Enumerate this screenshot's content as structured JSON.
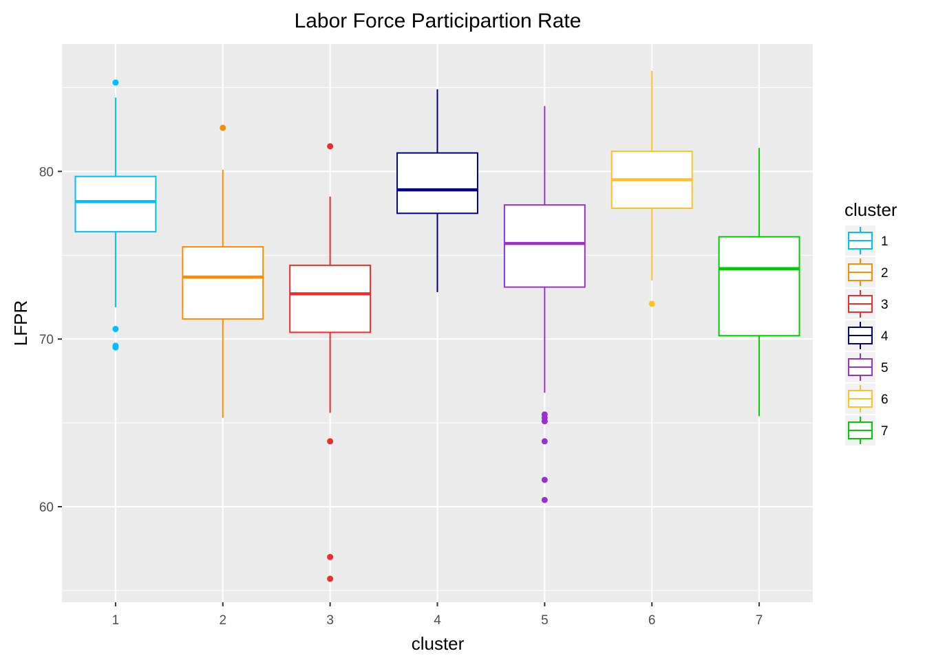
{
  "chart_data": {
    "type": "boxplot",
    "title": "Labor Force Participartion Rate",
    "xlabel": "cluster",
    "ylabel": "LFPR",
    "ylim": [
      54.3,
      87.6
    ],
    "yticks": [
      60,
      70,
      80
    ],
    "grid": true,
    "legend": {
      "title": "cluster",
      "position": "right"
    },
    "categories": [
      "1",
      "2",
      "3",
      "4",
      "5",
      "6",
      "7"
    ],
    "series": [
      {
        "name": "1",
        "color": "#00BFFF",
        "q1": 76.4,
        "median": 78.2,
        "q3": 79.7,
        "whisker_low": 71.9,
        "whisker_high": 84.4,
        "outliers": [
          85.3,
          70.6,
          69.6,
          69.5
        ]
      },
      {
        "name": "2",
        "color": "#FF8C00",
        "q1": 71.2,
        "median": 73.7,
        "q3": 75.5,
        "whisker_low": 65.3,
        "whisker_high": 80.1,
        "outliers": [
          82.6
        ]
      },
      {
        "name": "3",
        "color": "#EE2C2C",
        "q1": 70.4,
        "median": 72.7,
        "q3": 74.4,
        "whisker_low": 65.6,
        "whisker_high": 78.5,
        "outliers": [
          81.5,
          63.9,
          57.0,
          55.7
        ]
      },
      {
        "name": "4",
        "color": "#000080",
        "q1": 77.5,
        "median": 78.9,
        "q3": 81.1,
        "whisker_low": 72.8,
        "whisker_high": 84.9,
        "outliers": []
      },
      {
        "name": "5",
        "color": "#9932CC",
        "q1": 73.1,
        "median": 75.7,
        "q3": 78.0,
        "whisker_low": 66.8,
        "whisker_high": 83.9,
        "outliers": [
          65.5,
          65.3,
          65.1,
          63.9,
          61.6,
          60.4
        ]
      },
      {
        "name": "6",
        "color": "#FFC125",
        "q1": 77.8,
        "median": 79.5,
        "q3": 81.2,
        "whisker_low": 73.5,
        "whisker_high": 86.0,
        "outliers": [
          72.1
        ]
      },
      {
        "name": "7",
        "color": "#00CD00",
        "q1": 70.2,
        "median": 74.2,
        "q3": 76.1,
        "whisker_low": 65.4,
        "whisker_high": 81.4,
        "outliers": []
      }
    ]
  }
}
